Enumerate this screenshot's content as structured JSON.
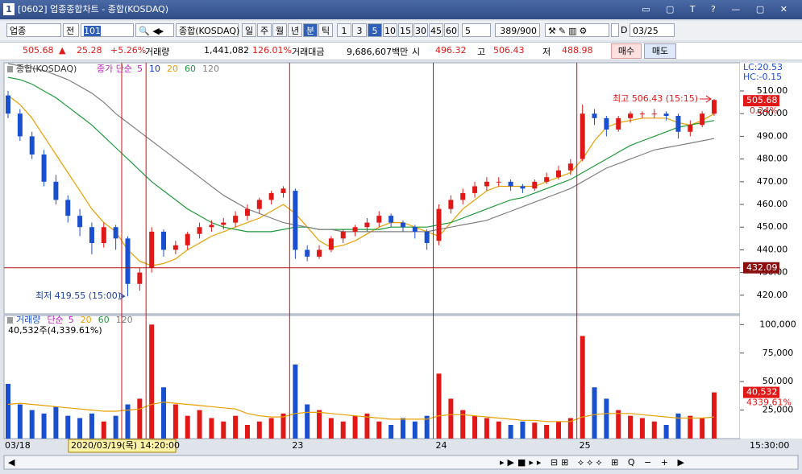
{
  "window": {
    "number": "1",
    "title": "[0602] 업종종합차트 - 종합(KOSDAQ)"
  },
  "toolbar": {
    "market": "업종",
    "all": "전",
    "code": "101",
    "name": "종합(KOSDAQ)",
    "periods": [
      "일",
      "주",
      "월",
      "년",
      "분",
      "틱"
    ],
    "intervals": [
      "1",
      "3",
      "5",
      "10",
      "15",
      "30",
      "45",
      "60"
    ],
    "count": "5",
    "range": "389/900",
    "d_label": "D",
    "date": "03/25"
  },
  "info": {
    "price": "505.68",
    "change": "25.28",
    "rate": "+5.26%",
    "vol_label": "거래량",
    "volume": "1,441,082",
    "vol_rate": "126.01%",
    "amount_label": "거래대금",
    "amount": "9,686,607백만",
    "open_label": "시",
    "open": "496.32",
    "high_label": "고",
    "high": "506.43",
    "low_label": "저",
    "low": "488.98",
    "buy": "매수",
    "sell": "매도"
  },
  "chart_data": [
    {
      "type": "candlestick",
      "legend": "종합(KOSDAQ)",
      "up_color": "#e01818",
      "down_color": "#1a4fd0",
      "ohlc": {
        "open": [
          508,
          500,
          490,
          482,
          470,
          462,
          455,
          450,
          443,
          450,
          445,
          425,
          432,
          448,
          440,
          442,
          447,
          450,
          451,
          452,
          455,
          458,
          462,
          465,
          466,
          440,
          437,
          440,
          445,
          448,
          450,
          452,
          455,
          452,
          450,
          448,
          444,
          458,
          462,
          465,
          468,
          470,
          470,
          468,
          467,
          470,
          472,
          475,
          480,
          500,
          498,
          493,
          498,
          500,
          500,
          500,
          499,
          492,
          495,
          500
        ],
        "high": [
          510,
          502,
          492,
          484,
          473,
          464,
          458,
          452,
          452,
          451,
          446,
          432,
          450,
          449,
          444,
          448,
          452,
          453,
          454,
          457,
          460,
          463,
          466,
          468,
          467,
          442,
          442,
          446,
          449,
          451,
          454,
          457,
          456,
          453,
          451,
          449,
          460,
          464,
          467,
          470,
          472,
          472,
          471,
          469,
          471,
          474,
          477,
          480,
          504,
          502,
          499,
          499,
          501,
          501,
          502,
          501,
          500,
          497,
          501,
          506.43
        ],
        "low": [
          498,
          488,
          480,
          468,
          460,
          452,
          446,
          438,
          441,
          440,
          419.55,
          422,
          430,
          437,
          438,
          440,
          445,
          448,
          449,
          450,
          453,
          456,
          460,
          463,
          436,
          435,
          436,
          439,
          443,
          446,
          448,
          450,
          450,
          448,
          445,
          440,
          442,
          456,
          460,
          463,
          466,
          468,
          466,
          465,
          466,
          469,
          471,
          473,
          479,
          495,
          490,
          492,
          496,
          498,
          498,
          497,
          488.98,
          490,
          494,
          499
        ],
        "close": [
          500,
          490,
          482,
          470,
          462,
          455,
          450,
          443,
          450,
          445,
          425,
          430,
          448,
          440,
          442,
          447,
          450,
          451,
          452,
          455,
          458,
          462,
          465,
          467,
          440,
          437,
          440,
          445,
          448,
          450,
          452,
          455,
          452,
          450,
          448,
          443,
          458,
          462,
          465,
          468,
          470,
          470,
          468,
          467,
          470,
          472,
          475,
          478,
          500,
          498,
          493,
          498,
          500,
          500,
          500,
          499,
          492,
          495,
          500,
          506
        ]
      },
      "ma_legend": {
        "label": "종가 단순",
        "color": "#c020c0",
        "items": [
          {
            "name": "5",
            "color": "#c020c0"
          },
          {
            "name": "10",
            "color": "#1030e0"
          },
          {
            "name": "20",
            "color": "#e8a000",
            "values": [
              508,
              504,
              498,
              490,
              482,
              474,
              466,
              458,
              452,
              448,
              440,
              435,
              433,
              434,
              436,
              440,
              443,
              446,
              448,
              450,
              452,
              454,
              457,
              460,
              456,
              450,
              444,
              441,
              442,
              444,
              447,
              450,
              452,
              452,
              450,
              448,
              446,
              452,
              458,
              462,
              466,
              468,
              468,
              468,
              468,
              470,
              472,
              474,
              480,
              488,
              494,
              496,
              497,
              498,
              498,
              498,
              496,
              495,
              497,
              500
            ]
          },
          {
            "name": "60",
            "color": "#1e9a3a",
            "values": [
              516,
              515,
              513,
              510,
              507,
              503,
              499,
              495,
              490,
              485,
              480,
              475,
              470,
              466,
              462,
              458,
              455,
              452,
              450,
              449,
              448,
              448,
              448,
              449,
              450,
              450,
              449,
              449,
              449,
              449,
              449,
              449,
              450,
              450,
              450,
              450,
              451,
              452,
              454,
              456,
              458,
              460,
              462,
              463,
              465,
              467,
              469,
              471,
              474,
              477,
              480,
              483,
              486,
              488,
              490,
              492,
              494,
              495,
              496,
              497
            ]
          },
          {
            "name": "120",
            "color": "#808080",
            "values": [
              522,
              521,
              520,
              519,
              517,
              515,
              512,
              509,
              505,
              500,
              496,
              492,
              488,
              484,
              480,
              476,
              472,
              468,
              464,
              461,
              458,
              456,
              454,
              452,
              451,
              450,
              449,
              449,
              448,
              448,
              448,
              448,
              448,
              448,
              448,
              448,
              449,
              450,
              451,
              452,
              453,
              455,
              457,
              459,
              461,
              463,
              465,
              467,
              470,
              473,
              476,
              478,
              480,
              482,
              484,
              485,
              486,
              487,
              488,
              489
            ]
          }
        ]
      },
      "ylim": [
        411.8,
        522.4
      ],
      "yticks": [
        {
          "value": 420,
          "label": "420.00"
        },
        {
          "value": 430,
          "label": "430.00"
        },
        {
          "value": 440,
          "label": "440.00"
        },
        {
          "value": 450,
          "label": "450.00"
        },
        {
          "value": 460,
          "label": "460.00"
        },
        {
          "value": 470,
          "label": "470.00"
        },
        {
          "value": 480,
          "label": "480.00"
        },
        {
          "value": 490,
          "label": "490.00"
        },
        {
          "value": 500,
          "label": "500.00"
        },
        {
          "value": 510,
          "label": "510.00"
        }
      ],
      "lc": "LC:20.53",
      "hc": "HC:-0.15",
      "current": {
        "value": 505.68,
        "label": "505.68"
      },
      "current_rate": "0.24%",
      "crosshair": {
        "value": 432.09,
        "label": "432.09"
      },
      "high_annotation": {
        "value": 506.43,
        "label": "최고 506.43 (15:15)"
      },
      "low_annotation": {
        "value": 419.55,
        "label": "최저 419.55 (15:00)"
      }
    },
    {
      "type": "bar",
      "title": "거래량",
      "up_color": "#e01818",
      "down_color": "#1a4fd0",
      "categories": [
        "03/18",
        null,
        null,
        null,
        null,
        null,
        null,
        null,
        null,
        null,
        null,
        null,
        null,
        null,
        null,
        null,
        null,
        null,
        null,
        null,
        null,
        null,
        null,
        null,
        "23",
        null,
        null,
        null,
        null,
        null,
        null,
        null,
        null,
        null,
        null,
        null,
        "24",
        null,
        null,
        null,
        null,
        null,
        null,
        null,
        null,
        null,
        null,
        null,
        "25",
        null,
        null,
        null,
        null,
        null,
        null,
        null,
        null,
        null,
        null,
        null
      ],
      "values": [
        48000,
        30000,
        25000,
        22000,
        28000,
        20000,
        18000,
        22000,
        15000,
        20000,
        30000,
        35000,
        100000,
        45000,
        30000,
        20000,
        25000,
        18000,
        15000,
        20000,
        12000,
        15000,
        18000,
        22000,
        65000,
        30000,
        25000,
        18000,
        15000,
        20000,
        22000,
        15000,
        12000,
        18000,
        15000,
        20000,
        57000,
        35000,
        25000,
        20000,
        18000,
        15000,
        12000,
        15000,
        14000,
        12000,
        15000,
        18000,
        90000,
        45000,
        35000,
        25000,
        20000,
        18000,
        15000,
        12000,
        22000,
        20000,
        18000,
        40532
      ],
      "ma_legend": {
        "label": "단순",
        "color": "#c020c0",
        "items": [
          {
            "name": "5",
            "color": "#c020c0"
          },
          {
            "name": "20",
            "color": "#e8a000",
            "values": [
              30000,
              31000,
              30000,
              29000,
              28000,
              27000,
              26000,
              25000,
              24000,
              24000,
              25000,
              26000,
              30000,
              32000,
              31000,
              30000,
              29000,
              28000,
              27000,
              26000,
              22000,
              20000,
              19000,
              19000,
              22000,
              23000,
              23000,
              22000,
              21000,
              20000,
              19000,
              18000,
              17000,
              17000,
              17000,
              17000,
              20000,
              21000,
              21000,
              20000,
              19000,
              18000,
              17000,
              16000,
              16000,
              15000,
              15000,
              15000,
              19000,
              21000,
              22000,
              22000,
              22000,
              21000,
              20000,
              19000,
              18000,
              18000,
              18000,
              19000
            ]
          },
          {
            "name": "60",
            "color": "#1e9a3a"
          },
          {
            "name": "120",
            "color": "#808080"
          }
        ]
      },
      "volume_note": "40,532주(4,339.61%)",
      "ylim": [
        0,
        108000
      ],
      "yticks": [
        {
          "value": 25000,
          "label": "25,000"
        },
        {
          "value": 50000,
          "label": "50,000"
        },
        {
          "value": 75000,
          "label": "75,000"
        },
        {
          "value": 100000,
          "label": "100,000"
        }
      ],
      "current": {
        "value": 40532,
        "label": "40,532"
      },
      "current_rate": "4339.61%",
      "cursor_label": "2020/03/19(목) 14:20:00",
      "end_label": "15:30:00"
    }
  ]
}
